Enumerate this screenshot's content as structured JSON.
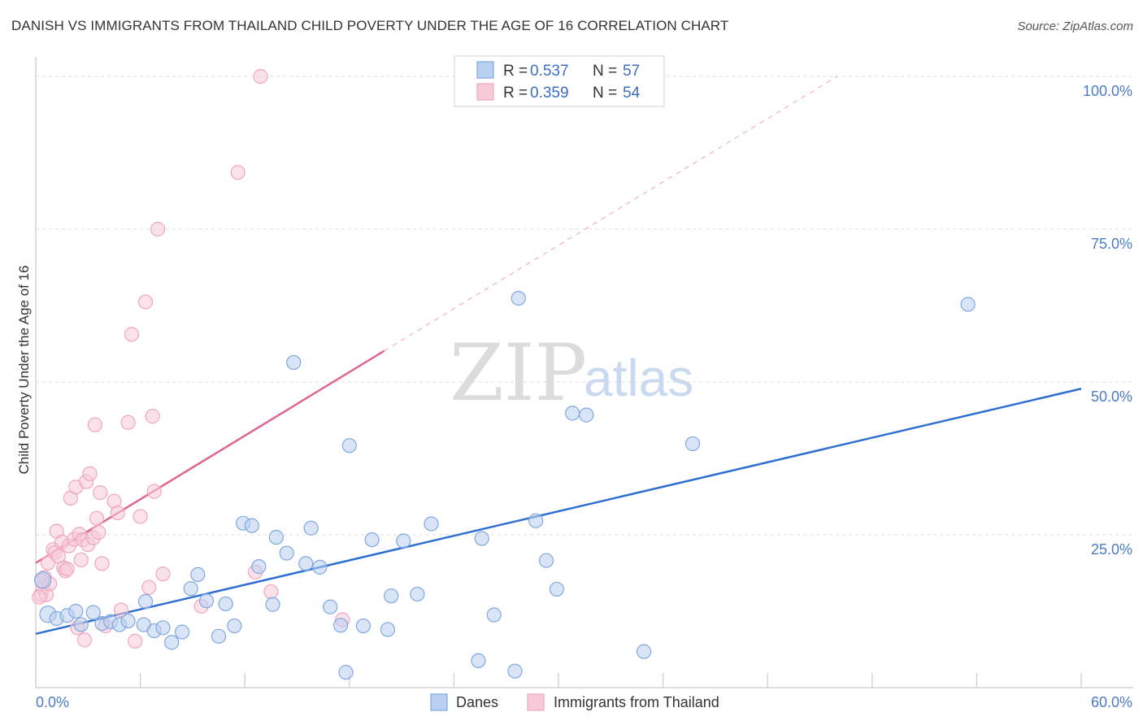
{
  "header": {
    "title": "DANISH VS IMMIGRANTS FROM THAILAND CHILD POVERTY UNDER THE AGE OF 16 CORRELATION CHART",
    "source": "Source: ZipAtlas.com"
  },
  "watermark": {
    "zip": "ZIP",
    "atlas": "atlas"
  },
  "colors": {
    "danes": "#7fa8e0",
    "danes_fill": "#b9d0f0",
    "danes_line": "#2e6fd0",
    "thai": "#f0a6bd",
    "thai_fill": "#f7cad8",
    "thai_line": "#e06690",
    "grid": "#dddddd",
    "tick_text": "#4a7cc6"
  },
  "legend": {
    "rows": [
      {
        "r_label": "R =",
        "r_value": "0.537",
        "n_label": "N =",
        "n_value": "57"
      },
      {
        "r_label": "R =",
        "r_value": "0.359",
        "n_label": "N =",
        "n_value": "54"
      }
    ]
  },
  "chart_data": {
    "type": "scatter",
    "title": "DANISH VS IMMIGRANTS FROM THAILAND CHILD POVERTY UNDER THE AGE OF 16 CORRELATION CHART",
    "xlabel": "",
    "ylabel": "Child Poverty Under the Age of 16",
    "xlim": [
      0,
      60
    ],
    "ylim": [
      0,
      100
    ],
    "x_tick_labels": [
      "0.0%",
      "60.0%"
    ],
    "y_ticks": [
      25,
      50,
      75,
      100
    ],
    "y_tick_labels": [
      "25.0%",
      "50.0%",
      "75.0%",
      "100.0%"
    ],
    "grid": true,
    "legend_position": "top-center",
    "series": [
      {
        "name": "Danes",
        "r": 0.537,
        "n": 57,
        "trend": {
          "x": [
            0,
            60
          ],
          "y": [
            8.8,
            48.9
          ],
          "dashed_after_x": null
        },
        "points": [
          [
            0.4,
            17.6
          ],
          [
            0.7,
            12.0
          ],
          [
            1.2,
            11.3
          ],
          [
            1.8,
            11.8
          ],
          [
            2.3,
            12.5
          ],
          [
            2.6,
            10.3
          ],
          [
            3.3,
            12.3
          ],
          [
            3.8,
            10.5
          ],
          [
            4.3,
            10.8
          ],
          [
            4.8,
            10.3
          ],
          [
            5.3,
            10.9
          ],
          [
            6.2,
            10.3
          ],
          [
            6.3,
            14.1
          ],
          [
            6.8,
            9.3
          ],
          [
            7.3,
            9.8
          ],
          [
            7.8,
            7.4
          ],
          [
            8.4,
            9.1
          ],
          [
            8.9,
            16.2
          ],
          [
            9.3,
            18.5
          ],
          [
            9.8,
            14.2
          ],
          [
            10.5,
            8.4
          ],
          [
            10.9,
            13.7
          ],
          [
            11.4,
            10.1
          ],
          [
            11.9,
            26.9
          ],
          [
            12.4,
            26.5
          ],
          [
            12.8,
            19.8
          ],
          [
            13.6,
            13.6
          ],
          [
            13.8,
            24.6
          ],
          [
            14.4,
            22.0
          ],
          [
            14.8,
            53.2
          ],
          [
            15.5,
            20.3
          ],
          [
            15.8,
            26.1
          ],
          [
            16.3,
            19.7
          ],
          [
            16.9,
            13.2
          ],
          [
            17.5,
            10.2
          ],
          [
            17.8,
            2.5
          ],
          [
            18.0,
            39.6
          ],
          [
            18.8,
            10.1
          ],
          [
            19.3,
            24.2
          ],
          [
            20.2,
            9.5
          ],
          [
            20.4,
            15.0
          ],
          [
            21.1,
            24.0
          ],
          [
            21.9,
            15.3
          ],
          [
            22.7,
            26.8
          ],
          [
            25.4,
            4.4
          ],
          [
            25.6,
            24.4
          ],
          [
            26.3,
            11.9
          ],
          [
            27.5,
            2.7
          ],
          [
            27.7,
            63.7
          ],
          [
            28.7,
            27.3
          ],
          [
            29.3,
            20.8
          ],
          [
            29.9,
            16.1
          ],
          [
            30.8,
            44.9
          ],
          [
            31.6,
            44.6
          ],
          [
            34.9,
            5.9
          ],
          [
            37.7,
            39.9
          ],
          [
            53.5,
            62.7
          ]
        ]
      },
      {
        "name": "Immigrants from Thailand",
        "r": 0.359,
        "n": 54,
        "trend": {
          "x": [
            0,
            20,
            46
          ],
          "y": [
            20.4,
            55.1,
            100
          ],
          "dashed_after_x": 20
        },
        "points": [
          [
            0.3,
            15.2
          ],
          [
            0.4,
            16.4
          ],
          [
            0.5,
            18.0
          ],
          [
            0.6,
            15.2
          ],
          [
            0.7,
            20.4
          ],
          [
            0.8,
            17.0
          ],
          [
            1.0,
            22.6
          ],
          [
            1.1,
            22.1
          ],
          [
            1.2,
            25.6
          ],
          [
            1.3,
            21.5
          ],
          [
            1.5,
            23.8
          ],
          [
            1.6,
            19.6
          ],
          [
            1.7,
            19.1
          ],
          [
            1.8,
            19.4
          ],
          [
            1.9,
            23.2
          ],
          [
            2.0,
            31.0
          ],
          [
            2.2,
            24.3
          ],
          [
            2.3,
            32.8
          ],
          [
            2.4,
            9.8
          ],
          [
            2.5,
            25.1
          ],
          [
            2.6,
            20.9
          ],
          [
            2.7,
            24.2
          ],
          [
            2.8,
            7.8
          ],
          [
            2.9,
            33.7
          ],
          [
            3.0,
            23.4
          ],
          [
            3.1,
            35.0
          ],
          [
            3.3,
            24.5
          ],
          [
            3.4,
            43.0
          ],
          [
            3.5,
            27.7
          ],
          [
            3.6,
            25.4
          ],
          [
            3.7,
            31.9
          ],
          [
            3.8,
            20.3
          ],
          [
            4.0,
            10.1
          ],
          [
            4.5,
            30.5
          ],
          [
            4.7,
            28.6
          ],
          [
            4.9,
            12.7
          ],
          [
            5.3,
            43.4
          ],
          [
            5.5,
            57.8
          ],
          [
            5.7,
            7.6
          ],
          [
            6.0,
            28.0
          ],
          [
            6.3,
            63.1
          ],
          [
            6.5,
            16.4
          ],
          [
            6.7,
            44.4
          ],
          [
            6.8,
            32.1
          ],
          [
            7.0,
            75.0
          ],
          [
            7.3,
            18.6
          ],
          [
            9.5,
            13.3
          ],
          [
            11.6,
            84.3
          ],
          [
            12.6,
            18.9
          ],
          [
            13.5,
            15.7
          ],
          [
            17.6,
            11.1
          ],
          [
            12.9,
            100.0
          ],
          [
            0.2,
            14.8
          ],
          [
            0.35,
            17.5
          ]
        ]
      }
    ]
  },
  "bottom_legend": [
    {
      "label": "Danes"
    },
    {
      "label": "Immigrants from Thailand"
    }
  ]
}
